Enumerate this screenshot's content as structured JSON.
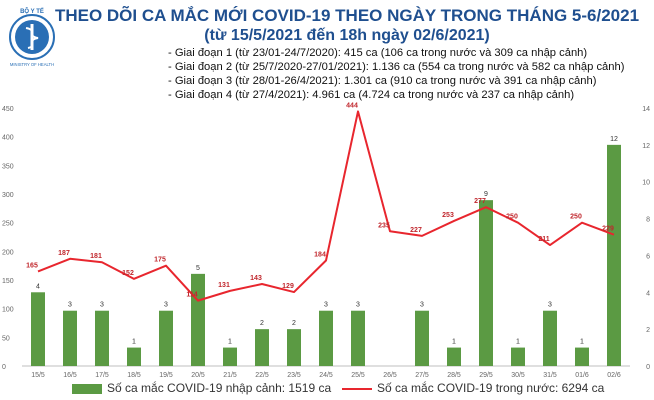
{
  "header": {
    "logo_text_top": "BỘ Y TẾ",
    "logo_text_bottom": "MINISTRY OF HEALTH",
    "title": "THEO DÕI CA MẮC MỚI COVID-19 THEO NGÀY TRONG THÁNG 5-6/2021",
    "subtitle": "(từ 15/5/2021 đến 18h ngày 02/6/2021)"
  },
  "phases": [
    "- Giai đoạn 1 (từ 23/01-24/7/2020): 415 ca (106 ca trong nước và 309 ca nhập cảnh)",
    "- Giai đoạn 2 (từ 25/7/2020-27/01/2021): 1.136 ca (554 ca trong nước và 582 ca nhập cảnh)",
    "- Giai đoạn 3 (từ 28/01-26/4/2021): 1.301 ca (910 ca trong nước và 391 ca nhập cảnh)",
    "- Giai đoạn 4 (từ 27/4/2021): 4.961 ca (4.724 ca trong nước và 237 ca nhập cảnh)"
  ],
  "chart_data": {
    "type": "bar",
    "categories": [
      "15/5",
      "16/5",
      "17/5",
      "18/5",
      "19/5",
      "20/5",
      "21/5",
      "22/5",
      "23/5",
      "24/5",
      "25/5",
      "26/5",
      "27/5",
      "28/5",
      "29/5",
      "30/5",
      "31/5",
      "01/6",
      "02/6"
    ],
    "series": [
      {
        "name": "Số ca mắc COVID-19 nhập cảnh: 1519 ca",
        "type": "bar",
        "axis": "right",
        "values": [
          4,
          3,
          3,
          1,
          3,
          5,
          1,
          2,
          2,
          3,
          3,
          0,
          3,
          1,
          9,
          1,
          3,
          1,
          12
        ],
        "labels": [
          "4",
          "3",
          "3",
          "1",
          "3",
          "5",
          "1",
          "2",
          "2",
          "3",
          "3",
          "",
          "3",
          "1",
          "9",
          "1",
          "3",
          "1",
          "12"
        ],
        "color": "#5b9a43"
      },
      {
        "name": "Số ca mắc COVID-19 trong nước: 6294 ca",
        "type": "line",
        "axis": "left",
        "values": [
          165,
          187,
          181,
          152,
          175,
          114,
          131,
          143,
          129,
          184,
          444,
          235,
          227,
          253,
          277,
          250,
          211,
          250,
          229
        ],
        "labels": [
          "165",
          "187",
          "181",
          "152",
          "175",
          "114",
          "131",
          "143",
          "129",
          "184",
          "444",
          "235",
          "227",
          "253",
          "277",
          "250",
          "211",
          "250",
          "229"
        ],
        "color": "#e8262e"
      }
    ],
    "y_left_ticks": [
      "0",
      "50",
      "100",
      "150",
      "200",
      "250",
      "300",
      "350",
      "400",
      "450"
    ],
    "y_left_range": [
      0,
      450
    ],
    "y_right_ticks": [
      "0",
      "2",
      "4",
      "6",
      "8",
      "10",
      "12",
      "14"
    ],
    "y_right_range": [
      0,
      14
    ],
    "grid": false,
    "legend_position": "bottom"
  },
  "colors": {
    "title": "#1f4f8f",
    "bar": "#5b9a43",
    "line": "#e8262e",
    "axis": "#bfbfbf",
    "tick_text": "#666666"
  }
}
